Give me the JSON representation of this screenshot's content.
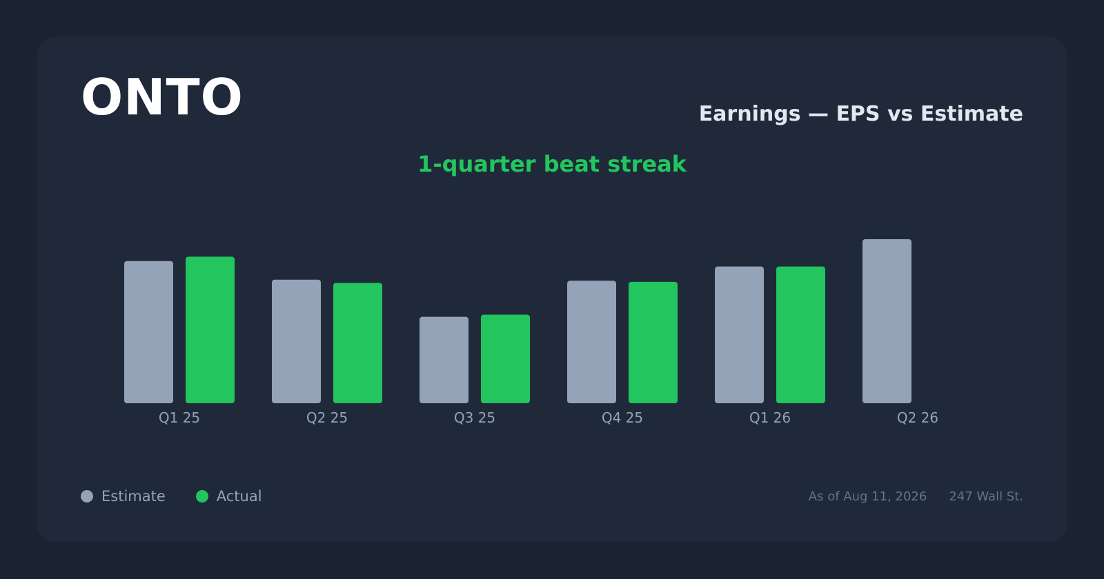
{
  "header": {
    "ticker": "ONTO",
    "title": "Earnings — EPS vs Estimate",
    "streak": "1-quarter beat streak"
  },
  "legend": {
    "estimate_label": "Estimate",
    "actual_label": "Actual"
  },
  "footer": {
    "as_of": "As of Aug 11, 2026",
    "source": "247 Wall St."
  },
  "colors": {
    "estimate": "#94a3b8",
    "actual": "#22c55e",
    "background": "#1b2331",
    "card": "#1f293a"
  },
  "chart_data": {
    "type": "bar",
    "categories": [
      "Q1 25",
      "Q2 25",
      "Q3 25",
      "Q4 25",
      "Q1 26",
      "Q2 26"
    ],
    "series": [
      {
        "name": "Estimate",
        "values": [
          1.3,
          1.13,
          0.79,
          1.12,
          1.25,
          1.5
        ]
      },
      {
        "name": "Actual",
        "values": [
          1.34,
          1.1,
          0.81,
          1.11,
          1.25,
          null
        ]
      }
    ],
    "title": "Earnings — EPS vs Estimate",
    "ylim": [
      0,
      1.5
    ],
    "grid": false,
    "legend_position": "bottom-left"
  }
}
